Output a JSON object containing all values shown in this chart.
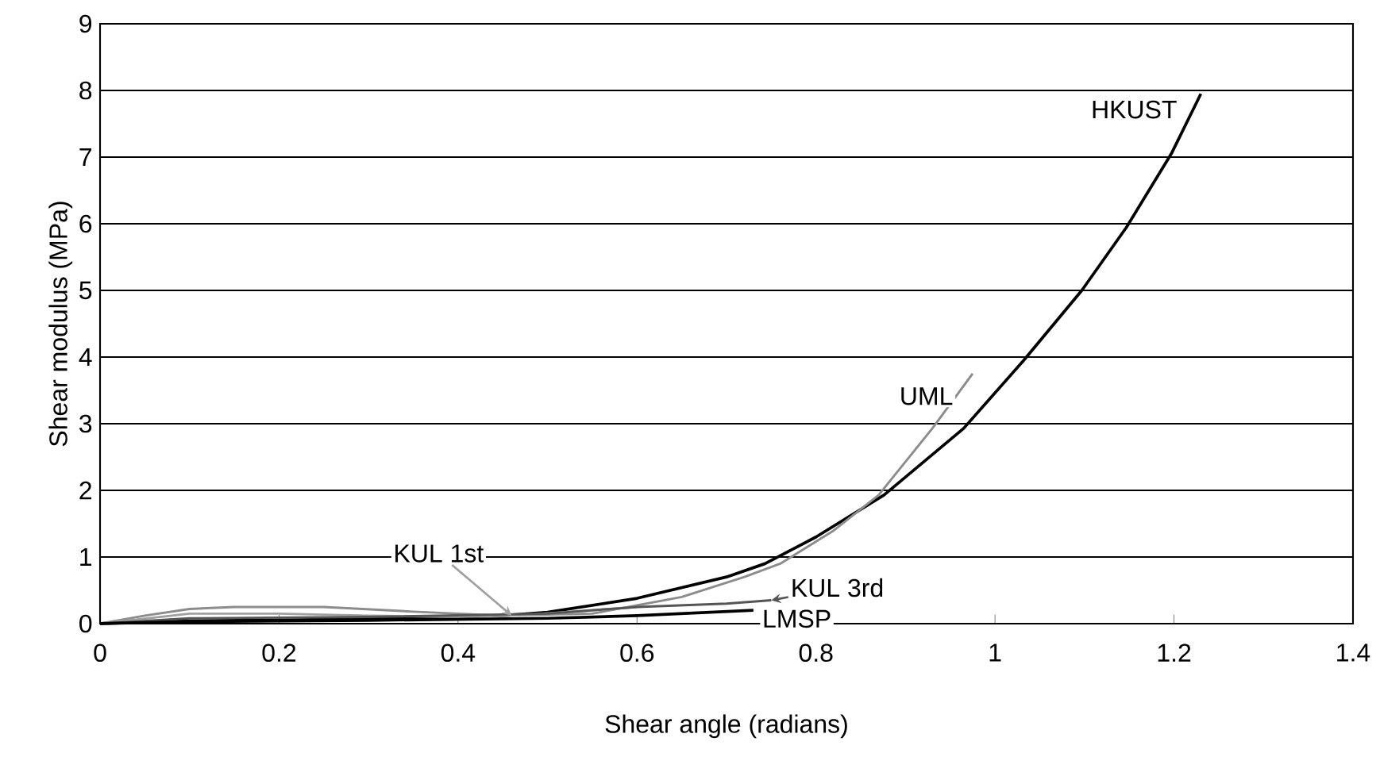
{
  "chart_data": {
    "type": "line",
    "xlabel": "Shear angle (radians)",
    "ylabel": "Shear modulus (MPa)",
    "xlim": [
      0,
      1.4
    ],
    "ylim": [
      0,
      9
    ],
    "xticks": [
      0,
      0.2,
      0.4,
      0.6,
      0.8,
      1,
      1.2,
      1.4
    ],
    "yticks": [
      0,
      1,
      2,
      3,
      4,
      5,
      6,
      7,
      8,
      9
    ],
    "grid": "y",
    "marker": "none",
    "line_style": "solid",
    "series": [
      {
        "name": "HKUST",
        "color": "#000000",
        "x": [
          0,
          0.1,
          0.3,
          0.45,
          0.5,
          0.6,
          0.7,
          0.743,
          0.8,
          0.876,
          0.965,
          1.032,
          1.097,
          1.147,
          1.197,
          1.23
        ],
        "values": [
          0,
          0.04,
          0.07,
          0.12,
          0.17,
          0.38,
          0.7,
          0.9,
          1.3,
          1.93,
          2.93,
          3.95,
          5.0,
          5.95,
          7.05,
          7.95
        ]
      },
      {
        "name": "UML",
        "color": "#8c8c8c",
        "x": [
          0,
          0.05,
          0.1,
          0.15,
          0.25,
          0.35,
          0.45,
          0.55,
          0.65,
          0.72,
          0.76,
          0.82,
          0.87,
          0.93,
          0.975
        ],
        "values": [
          0,
          0.12,
          0.22,
          0.25,
          0.25,
          0.18,
          0.12,
          0.15,
          0.4,
          0.7,
          0.9,
          1.4,
          1.93,
          2.93,
          3.75
        ]
      },
      {
        "name": "KUL 1st",
        "color": "#a0a0a0",
        "x": [
          0,
          0.1,
          0.2,
          0.3,
          0.4,
          0.46,
          0.55,
          0.6
        ],
        "values": [
          0,
          0.15,
          0.15,
          0.12,
          0.1,
          0.12,
          0.2,
          0.25
        ]
      },
      {
        "name": "KUL 3rd",
        "color": "#555555",
        "x": [
          0,
          0.1,
          0.3,
          0.5,
          0.6,
          0.7,
          0.75
        ],
        "values": [
          0,
          0.08,
          0.1,
          0.15,
          0.25,
          0.3,
          0.35
        ]
      },
      {
        "name": "LMSP",
        "color": "#000000",
        "x": [
          0,
          0.1,
          0.3,
          0.5,
          0.6,
          0.73
        ],
        "values": [
          0,
          0.03,
          0.05,
          0.08,
          0.12,
          0.2
        ]
      }
    ]
  }
}
